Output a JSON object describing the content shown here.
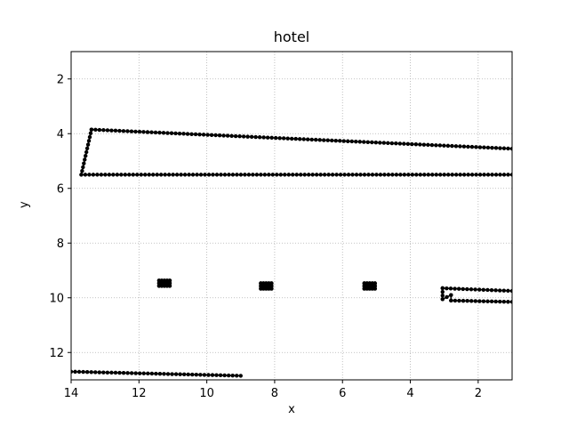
{
  "chart_data": {
    "type": "scatter",
    "title": "hotel",
    "xlabel": "x",
    "ylabel": "y",
    "xlim": [
      14,
      1
    ],
    "ylim": [
      13,
      1
    ],
    "x_inverted": true,
    "y_inverted": true,
    "grid": true,
    "grid_style": "dotted",
    "marker_color": "#000000",
    "xticks": [
      14,
      12,
      10,
      8,
      6,
      4,
      2
    ],
    "yticks": [
      2,
      4,
      6,
      8,
      10,
      12
    ],
    "segments": [
      {
        "from": [
          13.7,
          5.5
        ],
        "to": [
          13.4,
          3.85
        ]
      },
      {
        "from": [
          13.4,
          3.85
        ],
        "to": [
          1.0,
          4.55
        ]
      },
      {
        "from": [
          13.7,
          5.5
        ],
        "to": [
          1.0,
          5.5
        ]
      },
      {
        "from": [
          3.05,
          9.65
        ],
        "to": [
          1.0,
          9.75
        ]
      },
      {
        "from": [
          3.05,
          9.65
        ],
        "to": [
          3.05,
          10.05
        ]
      },
      {
        "from": [
          3.05,
          10.05
        ],
        "to": [
          2.8,
          9.9
        ]
      },
      {
        "from": [
          2.8,
          9.9
        ],
        "to": [
          2.8,
          10.1
        ]
      },
      {
        "from": [
          2.8,
          10.1
        ],
        "to": [
          1.0,
          10.15
        ]
      },
      {
        "from": [
          14.0,
          12.7
        ],
        "to": [
          9.0,
          12.85
        ]
      }
    ],
    "clusters": [
      {
        "x": 11.25,
        "y": 9.5
      },
      {
        "x": 8.25,
        "y": 9.6
      },
      {
        "x": 5.2,
        "y": 9.6
      }
    ]
  }
}
